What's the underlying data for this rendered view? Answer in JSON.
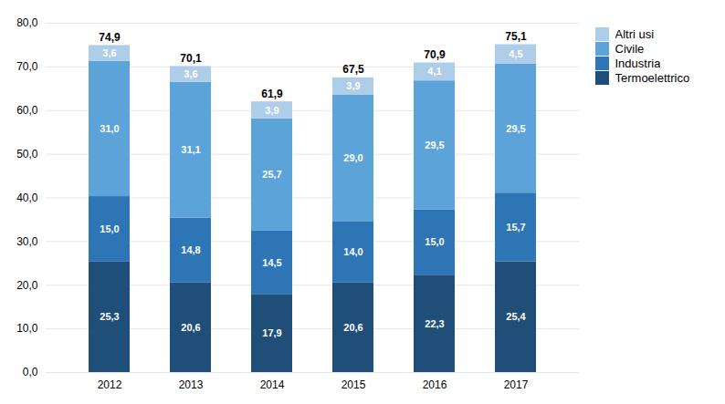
{
  "chart_data": {
    "type": "bar",
    "stacked": true,
    "categories": [
      "2012",
      "2013",
      "2014",
      "2015",
      "2016",
      "2017"
    ],
    "series": [
      {
        "name": "Termoelettrico",
        "color": "#1f4e79",
        "values": [
          25.3,
          20.6,
          17.9,
          20.6,
          22.3,
          25.4
        ],
        "value_labels": [
          "25,3",
          "20,6",
          "17,9",
          "20,6",
          "22,3",
          "25,4"
        ]
      },
      {
        "name": "Industria",
        "color": "#2e75b6",
        "values": [
          15.0,
          14.8,
          14.5,
          14.0,
          15.0,
          15.7
        ],
        "value_labels": [
          "15,0",
          "14,8",
          "14,5",
          "14,0",
          "15,0",
          "15,7"
        ]
      },
      {
        "name": "Civile",
        "color": "#5ba3d9",
        "values": [
          31.0,
          31.1,
          25.7,
          29.0,
          29.5,
          29.5
        ],
        "value_labels": [
          "31,0",
          "31,1",
          "25,7",
          "29,0",
          "29,5",
          "29,5"
        ]
      },
      {
        "name": "Altri usi",
        "color": "#aecde8",
        "values": [
          3.6,
          3.6,
          3.9,
          3.9,
          4.1,
          4.5
        ],
        "value_labels": [
          "3,6",
          "3,6",
          "3,9",
          "3,9",
          "4,1",
          "4,5"
        ]
      }
    ],
    "totals": [
      74.9,
      70.1,
      61.9,
      67.5,
      70.9,
      75.1
    ],
    "totals_labels": [
      "74,9",
      "70,1",
      "61,9",
      "67,5",
      "70,9",
      "75,1"
    ],
    "data_labels": true,
    "ylim": [
      0,
      80
    ],
    "yticks": [
      {
        "value": 0,
        "label": "0,0"
      },
      {
        "value": 10,
        "label": "10,0"
      },
      {
        "value": 20,
        "label": "20,0"
      },
      {
        "value": 30,
        "label": "30,0"
      },
      {
        "value": 40,
        "label": "40,0"
      },
      {
        "value": 50,
        "label": "50,0"
      },
      {
        "value": 60,
        "label": "60,0"
      },
      {
        "value": 70,
        "label": "70,0"
      },
      {
        "value": 80,
        "label": "80,0"
      }
    ],
    "grid": true,
    "legend": "right"
  }
}
